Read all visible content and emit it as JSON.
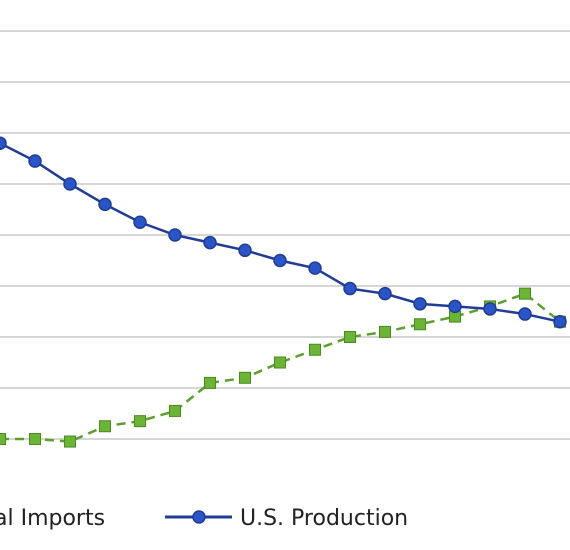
{
  "chart_data": {
    "type": "line",
    "title": "",
    "xlabel": "",
    "ylabel": "",
    "x_range": [
      0,
      16
    ],
    "ylim": [
      0,
      9
    ],
    "grid": true,
    "legend_position": "bottom",
    "series": [
      {
        "name": "al Imports",
        "color": "#5aa02c",
        "line_style": "dashed",
        "marker": "square",
        "x": [
          0,
          1,
          2,
          3,
          4,
          5,
          6,
          7,
          8,
          9,
          10,
          11,
          12,
          13,
          14,
          15,
          16
        ],
        "values": [
          1.0,
          1.0,
          0.95,
          1.25,
          1.35,
          1.55,
          2.1,
          2.2,
          2.5,
          2.75,
          3.0,
          3.1,
          3.25,
          3.4,
          3.6,
          3.85,
          3.3
        ]
      },
      {
        "name": "U.S. Production",
        "color": "#1f3c99",
        "line_style": "solid",
        "marker": "circle",
        "x": [
          0,
          1,
          2,
          3,
          4,
          5,
          6,
          7,
          8,
          9,
          10,
          11,
          12,
          13,
          14,
          15,
          16
        ],
        "values": [
          6.8,
          6.45,
          6.0,
          5.6,
          5.25,
          5.0,
          4.85,
          4.7,
          4.5,
          4.35,
          3.95,
          3.85,
          3.65,
          3.6,
          3.55,
          3.45,
          3.3
        ]
      }
    ]
  }
}
